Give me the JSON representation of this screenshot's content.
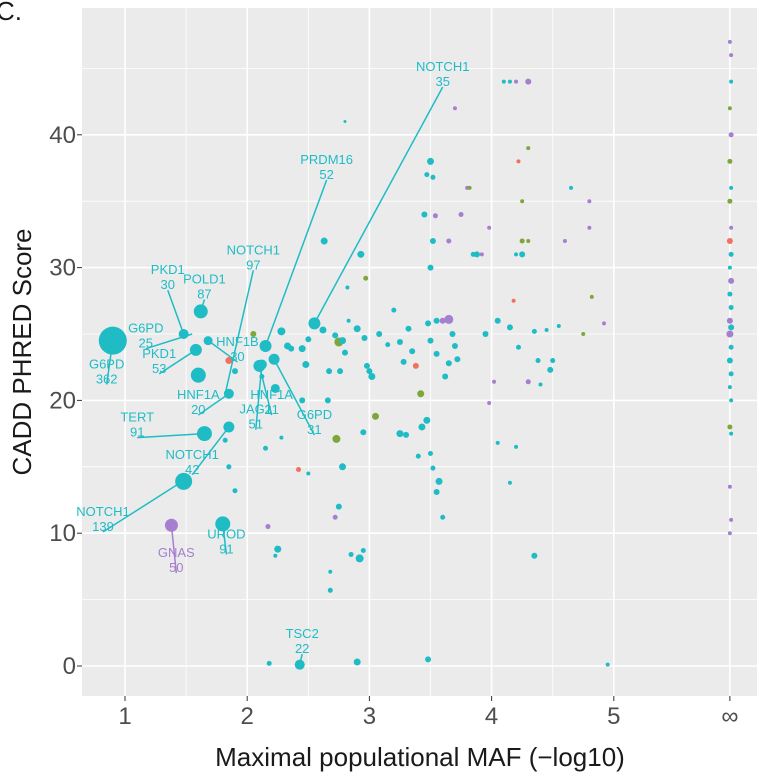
{
  "panel_label": "C.",
  "chart_data": {
    "type": "scatter",
    "xlabel": "Maximal populational MAF (−log10)",
    "ylabel": "CADD PHRED Score",
    "xlim": [
      0.7,
      5.8
    ],
    "ylim": [
      -2,
      48
    ],
    "x_ticks": [
      {
        "value": 1,
        "label": "1"
      },
      {
        "value": 2,
        "label": "2"
      },
      {
        "value": 3,
        "label": "3"
      },
      {
        "value": 4,
        "label": "4"
      },
      {
        "value": 5,
        "label": "5"
      },
      {
        "value": 5.95,
        "label": "∞"
      }
    ],
    "y_ticks": [
      {
        "value": 0,
        "label": "0"
      },
      {
        "value": 10,
        "label": "10"
      },
      {
        "value": 20,
        "label": "20"
      },
      {
        "value": 30,
        "label": "30"
      },
      {
        "value": 40,
        "label": "40"
      }
    ],
    "grid": true,
    "colors": {
      "teal": "#1fbcc6",
      "purple": "#a57fd0",
      "green": "#7ca83a",
      "red": "#f2715e",
      "panel": "#ebebeb",
      "grid": "#ffffff"
    },
    "annotations": [
      {
        "gene": "NOTCH1",
        "count": "35",
        "x": 2.55,
        "y": 25.8,
        "lx": 3.6,
        "ly": 44.5,
        "color": "teal"
      },
      {
        "gene": "PRDM16",
        "count": "52",
        "x": 2.15,
        "y": 24.1,
        "lx": 2.65,
        "ly": 37.5,
        "color": "teal"
      },
      {
        "gene": "NOTCH1",
        "count": "97",
        "x": 1.82,
        "y": 20.5,
        "lx": 2.05,
        "ly": 30.7,
        "color": "teal"
      },
      {
        "gene": "PKD1",
        "count": "30",
        "x": 1.48,
        "y": 25.0,
        "lx": 1.35,
        "ly": 29.2,
        "color": "teal"
      },
      {
        "gene": "POLD1",
        "count": "87",
        "x": 1.62,
        "y": 26.7,
        "lx": 1.65,
        "ly": 28.5,
        "color": "teal"
      },
      {
        "gene": "G6PD",
        "count": "25",
        "x": 1.55,
        "y": 25.0,
        "lx": 1.17,
        "ly": 24.8,
        "color": "teal"
      },
      {
        "gene": "HNF1B",
        "count": "30",
        "x": 1.68,
        "y": 24.5,
        "lx": 1.92,
        "ly": 23.8,
        "color": "teal"
      },
      {
        "gene": "G6PD",
        "count": "362",
        "x": 0.9,
        "y": 24.5,
        "lx": 0.85,
        "ly": 22.1,
        "color": "teal"
      },
      {
        "gene": "PKD1",
        "count": "53",
        "x": 1.58,
        "y": 23.8,
        "lx": 1.28,
        "ly": 22.9,
        "color": "teal"
      },
      {
        "gene": "HNF1A",
        "count": "20",
        "x": 1.85,
        "y": 20.5,
        "lx": 1.6,
        "ly": 19.8,
        "color": "teal"
      },
      {
        "gene": "HNF1A",
        "count": "21",
        "x": 2.1,
        "y": 22.6,
        "lx": 2.2,
        "ly": 19.8,
        "color": "teal"
      },
      {
        "gene": "G6PD",
        "count": "31",
        "x": 2.22,
        "y": 23.1,
        "lx": 2.55,
        "ly": 18.3,
        "color": "teal"
      },
      {
        "gene": "JAG1",
        "count": "51",
        "x": 2.12,
        "y": 22.7,
        "lx": 2.07,
        "ly": 18.7,
        "color": "teal"
      },
      {
        "gene": "TERT",
        "count": "91",
        "x": 1.65,
        "y": 17.5,
        "lx": 1.1,
        "ly": 18.1,
        "color": "teal"
      },
      {
        "gene": "NOTCH1",
        "count": "42",
        "x": 1.85,
        "y": 18.0,
        "lx": 1.55,
        "ly": 15.3,
        "color": "teal"
      },
      {
        "gene": "NOTCH1",
        "count": "139",
        "x": 1.47,
        "y": 13.9,
        "lx": 0.82,
        "ly": 11.0,
        "color": "teal"
      },
      {
        "gene": "UROD",
        "count": "91",
        "x": 1.8,
        "y": 10.7,
        "lx": 1.83,
        "ly": 9.3,
        "color": "teal"
      },
      {
        "gene": "GNAS",
        "count": "50",
        "x": 1.38,
        "y": 10.6,
        "lx": 1.42,
        "ly": 7.9,
        "color": "purple"
      },
      {
        "gene": "TSC2",
        "count": "22",
        "x": 2.43,
        "y": 0.1,
        "lx": 2.45,
        "ly": 1.8,
        "color": "teal"
      }
    ],
    "points": [
      [
        0.9,
        24.5,
        14,
        "teal"
      ],
      [
        1.48,
        13.9,
        8.5,
        "teal"
      ],
      [
        1.65,
        17.5,
        7.5,
        "teal"
      ],
      [
        1.8,
        10.7,
        7.5,
        "teal"
      ],
      [
        1.38,
        10.6,
        6.5,
        "purple"
      ],
      [
        1.62,
        26.7,
        7,
        "teal"
      ],
      [
        1.6,
        21.9,
        7.5,
        "teal"
      ],
      [
        1.58,
        23.8,
        6,
        "teal"
      ],
      [
        1.48,
        25.0,
        5,
        "teal"
      ],
      [
        1.68,
        24.5,
        4.5,
        "teal"
      ],
      [
        1.85,
        20.5,
        5,
        "teal"
      ],
      [
        1.85,
        18.0,
        5.5,
        "teal"
      ],
      [
        2.55,
        25.8,
        6,
        "teal"
      ],
      [
        2.15,
        24.1,
        6,
        "teal"
      ],
      [
        2.1,
        22.6,
        6,
        "teal"
      ],
      [
        2.22,
        23.1,
        5.5,
        "teal"
      ],
      [
        2.12,
        22.7,
        5,
        "teal"
      ],
      [
        2.43,
        0.1,
        5,
        "teal"
      ],
      [
        1.85,
        23.0,
        3.5,
        "red"
      ],
      [
        1.9,
        22.2,
        3,
        "teal"
      ],
      [
        1.82,
        17.0,
        2.5,
        "teal"
      ],
      [
        1.85,
        15.0,
        2.5,
        "teal"
      ],
      [
        1.9,
        13.2,
        2.5,
        "teal"
      ],
      [
        2.05,
        25.0,
        3,
        "green"
      ],
      [
        2.12,
        21.8,
        2.5,
        "teal"
      ],
      [
        2.23,
        20.9,
        4.5,
        "teal"
      ],
      [
        2.28,
        25.2,
        4,
        "teal"
      ],
      [
        2.33,
        24.1,
        3.5,
        "teal"
      ],
      [
        2.36,
        23.9,
        3,
        "teal"
      ],
      [
        2.45,
        23.9,
        3.5,
        "teal"
      ],
      [
        2.48,
        22.7,
        3.5,
        "teal"
      ],
      [
        2.5,
        24.6,
        3,
        "teal"
      ],
      [
        2.45,
        20.0,
        3,
        "teal"
      ],
      [
        2.15,
        16.4,
        2.5,
        "teal"
      ],
      [
        2.28,
        17.2,
        2,
        "teal"
      ],
      [
        2.25,
        8.8,
        3.5,
        "teal"
      ],
      [
        2.23,
        8.3,
        2,
        "teal"
      ],
      [
        2.17,
        10.5,
        2.5,
        "purple"
      ],
      [
        2.18,
        0.2,
        2.5,
        "teal"
      ],
      [
        2.42,
        14.8,
        2.5,
        "red"
      ],
      [
        2.5,
        14.5,
        2,
        "teal"
      ],
      [
        2.63,
        32.0,
        3.5,
        "teal"
      ],
      [
        2.62,
        25.3,
        3.5,
        "teal"
      ],
      [
        2.67,
        22.2,
        3,
        "teal"
      ],
      [
        2.66,
        20.0,
        3,
        "teal"
      ],
      [
        2.72,
        24.9,
        3,
        "teal"
      ],
      [
        2.75,
        24.4,
        4.5,
        "green"
      ],
      [
        2.78,
        24.5,
        3.5,
        "teal"
      ],
      [
        2.8,
        23.6,
        3,
        "teal"
      ],
      [
        2.76,
        22.2,
        3,
        "teal"
      ],
      [
        2.73,
        17.1,
        4,
        "green"
      ],
      [
        2.78,
        15.0,
        3.5,
        "teal"
      ],
      [
        2.75,
        12.0,
        3,
        "teal"
      ],
      [
        2.72,
        11.2,
        2.5,
        "purple"
      ],
      [
        2.68,
        7.1,
        2,
        "teal"
      ],
      [
        2.68,
        5.7,
        2.5,
        "teal"
      ],
      [
        2.82,
        28.5,
        2,
        "teal"
      ],
      [
        2.8,
        41.0,
        1.5,
        "teal"
      ],
      [
        2.85,
        8.4,
        2.5,
        "teal"
      ],
      [
        2.92,
        8.1,
        4,
        "teal"
      ],
      [
        2.95,
        8.7,
        2.5,
        "teal"
      ],
      [
        2.9,
        0.3,
        3.5,
        "teal"
      ],
      [
        2.83,
        26.0,
        2,
        "teal"
      ],
      [
        2.9,
        25.4,
        3.5,
        "teal"
      ],
      [
        2.96,
        24.7,
        3,
        "teal"
      ],
      [
        2.93,
        31.0,
        3.5,
        "teal"
      ],
      [
        2.97,
        29.2,
        2.5,
        "green"
      ],
      [
        2.98,
        22.6,
        3,
        "teal"
      ],
      [
        3.0,
        22.2,
        3,
        "teal"
      ],
      [
        3.02,
        21.8,
        3.5,
        "teal"
      ],
      [
        3.05,
        18.8,
        3.5,
        "green"
      ],
      [
        2.95,
        17.6,
        3,
        "teal"
      ],
      [
        3.08,
        25.0,
        3,
        "teal"
      ],
      [
        3.15,
        24.2,
        2.5,
        "teal"
      ],
      [
        3.2,
        26.8,
        2.5,
        "teal"
      ],
      [
        3.25,
        17.5,
        3.5,
        "teal"
      ],
      [
        3.3,
        17.4,
        3,
        "teal"
      ],
      [
        3.25,
        24.4,
        3,
        "teal"
      ],
      [
        3.28,
        22.9,
        3,
        "teal"
      ],
      [
        3.32,
        25.4,
        3,
        "teal"
      ],
      [
        3.35,
        23.7,
        3,
        "teal"
      ],
      [
        3.38,
        22.6,
        3,
        "red"
      ],
      [
        3.42,
        20.5,
        3.5,
        "green"
      ],
      [
        3.4,
        15.8,
        2.5,
        "teal"
      ],
      [
        3.45,
        34.0,
        3,
        "teal"
      ],
      [
        3.47,
        37.0,
        2.5,
        "teal"
      ],
      [
        3.5,
        38.0,
        3.5,
        "teal"
      ],
      [
        3.52,
        36.8,
        2.5,
        "teal"
      ],
      [
        3.5,
        30.0,
        3,
        "teal"
      ],
      [
        3.52,
        32.0,
        3,
        "teal"
      ],
      [
        3.54,
        33.9,
        2.5,
        "purple"
      ],
      [
        3.55,
        26.0,
        3,
        "teal"
      ],
      [
        3.48,
        25.8,
        3,
        "teal"
      ],
      [
        3.5,
        24.5,
        3,
        "teal"
      ],
      [
        3.55,
        23.5,
        3,
        "teal"
      ],
      [
        3.47,
        18.5,
        3.5,
        "teal"
      ],
      [
        3.43,
        18.0,
        3.5,
        "teal"
      ],
      [
        3.5,
        16.0,
        2.5,
        "teal"
      ],
      [
        3.52,
        14.9,
        2.5,
        "teal"
      ],
      [
        3.57,
        13.9,
        3.5,
        "teal"
      ],
      [
        3.55,
        13.1,
        3,
        "teal"
      ],
      [
        3.6,
        11.2,
        2.5,
        "teal"
      ],
      [
        3.48,
        0.5,
        3,
        "teal"
      ],
      [
        3.6,
        26.0,
        3,
        "purple"
      ],
      [
        3.65,
        26.1,
        4.5,
        "purple"
      ],
      [
        3.68,
        25.0,
        3,
        "teal"
      ],
      [
        3.7,
        24.1,
        3,
        "teal"
      ],
      [
        3.72,
        23.1,
        3,
        "teal"
      ],
      [
        3.65,
        22.8,
        3,
        "teal"
      ],
      [
        3.62,
        21.8,
        3,
        "teal"
      ],
      [
        3.65,
        32.0,
        2.5,
        "purple"
      ],
      [
        3.7,
        42.0,
        2,
        "purple"
      ],
      [
        3.75,
        34.0,
        2.5,
        "purple"
      ],
      [
        3.8,
        36.0,
        2,
        "purple"
      ],
      [
        3.82,
        36.0,
        2,
        "green"
      ],
      [
        3.85,
        31.0,
        2.5,
        "teal"
      ],
      [
        3.88,
        31.0,
        3,
        "teal"
      ],
      [
        3.92,
        31.0,
        2,
        "purple"
      ],
      [
        3.98,
        33.0,
        2,
        "purple"
      ],
      [
        3.95,
        25.0,
        3,
        "teal"
      ],
      [
        4.05,
        26.0,
        3,
        "teal"
      ],
      [
        4.02,
        21.4,
        2,
        "purple"
      ],
      [
        3.98,
        19.8,
        2,
        "purple"
      ],
      [
        4.05,
        16.8,
        2,
        "teal"
      ],
      [
        4.1,
        44.0,
        2,
        "teal"
      ],
      [
        4.15,
        44.0,
        2,
        "teal"
      ],
      [
        4.2,
        44.0,
        2,
        "purple"
      ],
      [
        4.3,
        44.0,
        3,
        "purple"
      ],
      [
        4.22,
        38.0,
        2,
        "red"
      ],
      [
        4.3,
        39.0,
        2,
        "green"
      ],
      [
        4.25,
        35.0,
        2,
        "green"
      ],
      [
        4.25,
        32.0,
        2.5,
        "green"
      ],
      [
        4.3,
        32.0,
        2,
        "green"
      ],
      [
        4.2,
        31.0,
        2,
        "teal"
      ],
      [
        4.25,
        31.0,
        3,
        "teal"
      ],
      [
        4.18,
        27.5,
        2,
        "red"
      ],
      [
        4.15,
        25.5,
        3,
        "teal"
      ],
      [
        4.22,
        24.0,
        2.5,
        "teal"
      ],
      [
        4.35,
        25.2,
        2.5,
        "teal"
      ],
      [
        4.38,
        23.0,
        2.5,
        "teal"
      ],
      [
        4.3,
        21.4,
        2.5,
        "purple"
      ],
      [
        4.4,
        21.2,
        2,
        "teal"
      ],
      [
        4.2,
        16.5,
        2,
        "teal"
      ],
      [
        4.15,
        13.8,
        2,
        "teal"
      ],
      [
        4.35,
        8.3,
        3,
        "teal"
      ],
      [
        4.45,
        25.3,
        2,
        "teal"
      ],
      [
        4.5,
        23.0,
        2.5,
        "teal"
      ],
      [
        4.48,
        22.3,
        3,
        "teal"
      ],
      [
        4.55,
        25.6,
        2,
        "teal"
      ],
      [
        4.65,
        36.0,
        2,
        "teal"
      ],
      [
        4.6,
        32.0,
        2,
        "purple"
      ],
      [
        4.75,
        25.0,
        2,
        "green"
      ],
      [
        4.8,
        35.0,
        2,
        "purple"
      ],
      [
        4.8,
        33.0,
        2,
        "purple"
      ],
      [
        4.82,
        27.8,
        2,
        "green"
      ],
      [
        4.92,
        25.8,
        2,
        "purple"
      ],
      [
        4.95,
        0.1,
        2,
        "teal"
      ],
      [
        5.95,
        47.0,
        2,
        "purple"
      ],
      [
        5.96,
        46.0,
        2,
        "purple"
      ],
      [
        5.96,
        44.0,
        2,
        "teal"
      ],
      [
        5.95,
        42.0,
        2,
        "green"
      ],
      [
        5.96,
        40.0,
        2.5,
        "purple"
      ],
      [
        5.95,
        38.0,
        2.5,
        "green"
      ],
      [
        5.96,
        36.0,
        2,
        "teal"
      ],
      [
        5.95,
        35.0,
        2.5,
        "green"
      ],
      [
        5.96,
        33.0,
        2,
        "purple"
      ],
      [
        5.95,
        32.0,
        3,
        "red"
      ],
      [
        5.96,
        31.0,
        2.5,
        "teal"
      ],
      [
        5.95,
        30.0,
        2,
        "teal"
      ],
      [
        5.96,
        29.0,
        3,
        "purple"
      ],
      [
        5.95,
        28.0,
        2.5,
        "teal"
      ],
      [
        5.96,
        27.0,
        2.5,
        "teal"
      ],
      [
        5.95,
        26.0,
        3,
        "purple"
      ],
      [
        5.96,
        25.5,
        3,
        "teal"
      ],
      [
        5.95,
        25.0,
        3.5,
        "purple"
      ],
      [
        5.96,
        24.0,
        2.5,
        "teal"
      ],
      [
        5.95,
        23.0,
        3,
        "teal"
      ],
      [
        5.96,
        22.0,
        2.5,
        "teal"
      ],
      [
        5.95,
        21.0,
        2,
        "teal"
      ],
      [
        5.96,
        20.0,
        2,
        "teal"
      ],
      [
        5.95,
        18.0,
        2.5,
        "green"
      ],
      [
        5.96,
        17.5,
        2,
        "teal"
      ],
      [
        5.95,
        13.5,
        2,
        "purple"
      ],
      [
        5.96,
        11.0,
        2,
        "purple"
      ],
      [
        5.95,
        10.0,
        2,
        "purple"
      ]
    ]
  }
}
